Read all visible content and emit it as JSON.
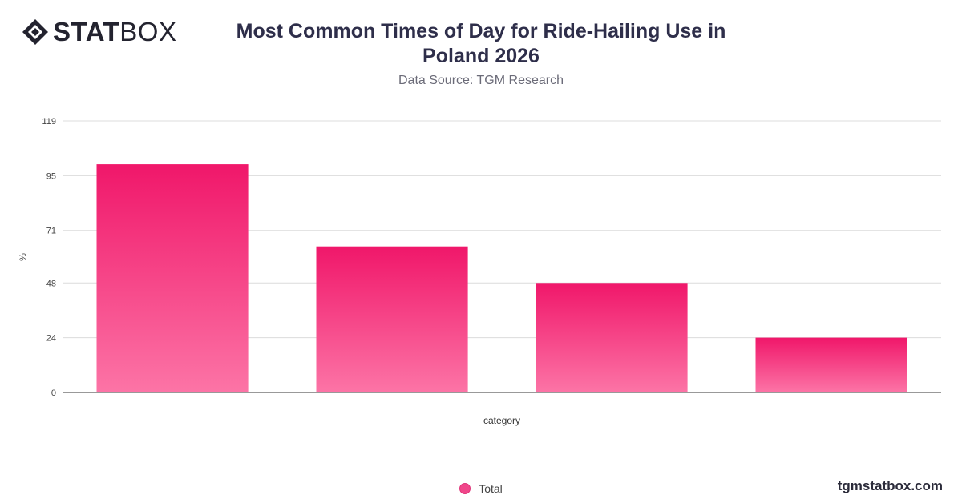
{
  "brand": {
    "logo_bold": "STAT",
    "logo_light": "BOX",
    "site": "tgmstatbox.com"
  },
  "chart_data": {
    "type": "bar",
    "title": "Most Common Times of Day for Ride-Hailing Use in Poland 2026",
    "subtitle": "Data Source: TGM Research",
    "xlabel": "category",
    "ylabel": "%",
    "categories": [
      "",
      "",
      "",
      ""
    ],
    "series": [
      {
        "name": "Total",
        "values": [
          100,
          64,
          48,
          24
        ]
      }
    ],
    "ylim": [
      0,
      119
    ],
    "yticks": [
      0,
      24,
      48,
      71,
      95,
      119
    ],
    "grid": true,
    "legend_position": "bottom",
    "colors": {
      "bar_top": "#f0176a",
      "bar_bottom": "#fc74a6",
      "grid": "#dcdcdc",
      "axis": "#333333"
    }
  }
}
